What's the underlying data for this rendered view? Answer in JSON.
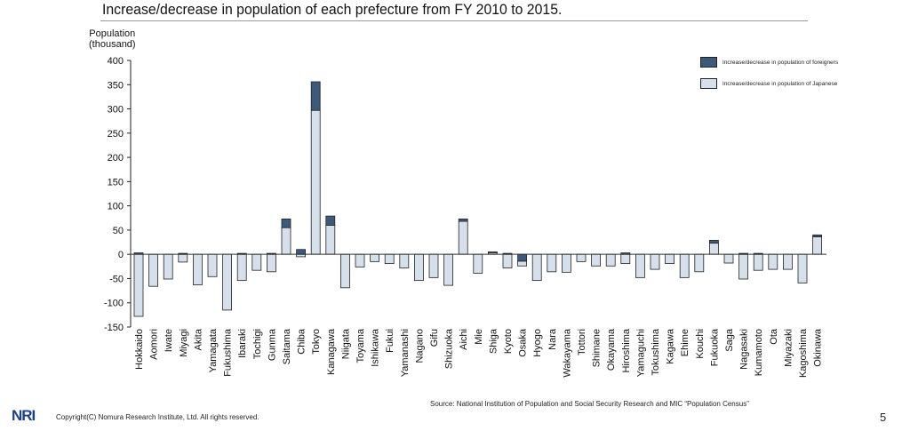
{
  "page": {
    "title": "Increase/decrease in population of each prefecture from FY 2010 to 2015.",
    "source": "Source: National Institution of Population and Social Security Research and MIC “Population Census”",
    "logo": "NRI",
    "copyright": "Copyright(C) Nomura Research Institute, Ltd. All rights reserved.",
    "page_number": "5"
  },
  "colors": {
    "foreigners": "#3d5a7a",
    "japanese": "#d6e0ea",
    "bar_border": "#222222"
  },
  "chart_data": {
    "type": "bar",
    "stacked": true,
    "title": "Increase/decrease in population of each prefecture from FY 2010 to 2015.",
    "ylabel_line1": "Population",
    "ylabel_line2": "(thousand)",
    "xlabel": "",
    "ylim": [
      -150,
      400
    ],
    "yticks": [
      400,
      350,
      300,
      250,
      200,
      150,
      100,
      50,
      0,
      -50,
      -100,
      -150
    ],
    "grid": false,
    "legend_position": "top-right",
    "categories": [
      "Hokkaido",
      "Aomori",
      "Iwate",
      "Miyagi",
      "Akita",
      "Yamagata",
      "Fukushima",
      "Ibaraki",
      "Tochigi",
      "Gunma",
      "Saitama",
      "Chiba",
      "Tokyo",
      "Kanagawa",
      "Niigata",
      "Toyama",
      "Ishikawa",
      "Fukui",
      "Yamanashi",
      "Nagano",
      "Gifu",
      "Shizuoka",
      "Aichi",
      "Mie",
      "Shiga",
      "Kyoto",
      "Osaka",
      "Hyogo",
      "Nara",
      "Wakayama",
      "Tottori",
      "Shimane",
      "Okayama",
      "Hiroshima",
      "Yamaguchi",
      "Tokushima",
      "Kagawa",
      "Ehime",
      "Kouchi",
      "Fukuoka",
      "Saga",
      "Nagasaki",
      "Kumamoto",
      "Ota",
      "Miyazaki",
      "Kagoshima",
      "Okinawa"
    ],
    "series": [
      {
        "name": "Increase/decrease in population of Japanese",
        "values": [
          -128,
          -66,
          -51,
          -16,
          -63,
          -46,
          -115,
          -54,
          -33,
          -36,
          55,
          -5,
          297,
          60,
          -69,
          -26,
          -15,
          -19,
          -28,
          -54,
          -48,
          -64,
          68,
          -39,
          4,
          -28,
          -10,
          -54,
          -36,
          -37,
          -15,
          -24,
          -24,
          -19,
          -48,
          -31,
          -19,
          -48,
          -36,
          23,
          -18,
          -51,
          -33,
          -31,
          -31,
          -59,
          36
        ]
      },
      {
        "name": "Increase/decrease in population of foreigners",
        "values": [
          3,
          0,
          0,
          2,
          0,
          0,
          0,
          2,
          0,
          2,
          18,
          10,
          59,
          19,
          0,
          0,
          0,
          0,
          0,
          0,
          0,
          0,
          5,
          0,
          1,
          2,
          -14,
          0,
          0,
          0,
          0,
          0,
          0,
          3,
          0,
          0,
          0,
          0,
          0,
          6,
          0,
          2,
          2,
          0,
          0,
          0,
          4
        ]
      }
    ]
  }
}
